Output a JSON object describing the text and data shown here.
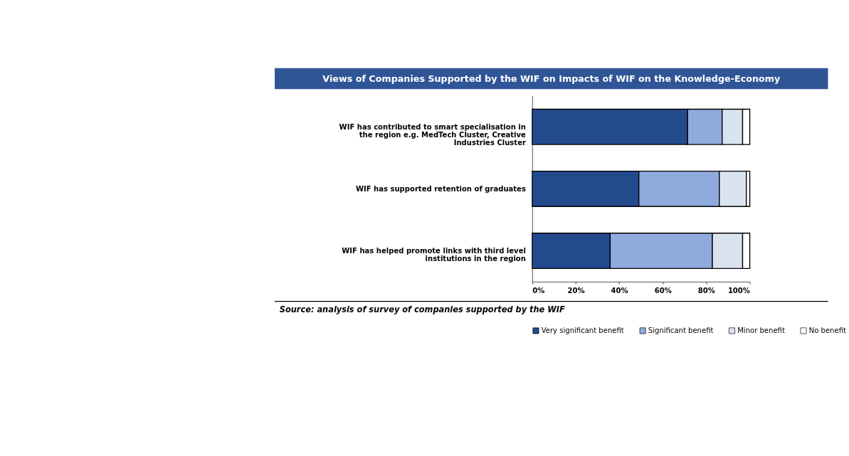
{
  "chart_data": {
    "type": "bar",
    "orientation": "horizontal",
    "stacked": true,
    "title": "Views of Companies Supported by the WIF on Impacts of WIF on the Knowledge-Economy",
    "categories": [
      "WIF has contributed to smart specialisation in the region e.g. MedTech Cluster, Creative Industries Cluster",
      "WIF has supported retention of graduates",
      "WIF has helped promote links with third level institutions in the region"
    ],
    "series": [
      {
        "name": "Very significant benefit",
        "color": "#244a8e",
        "values": [
          71.4,
          49.0,
          35.8
        ]
      },
      {
        "name": "Significant benefit",
        "color": "#8faadc",
        "values": [
          15.9,
          37.0,
          47.0
        ]
      },
      {
        "name": "Minor benefit",
        "color": "#dae3f0",
        "values": [
          9.4,
          12.4,
          13.9
        ]
      },
      {
        "name": "No benefit",
        "color": "#ffffff",
        "values": [
          3.3,
          1.6,
          3.3
        ]
      }
    ],
    "xlim": [
      0,
      100
    ],
    "xticks": [
      {
        "value": 0,
        "label": "0%"
      },
      {
        "value": 20,
        "label": "20%"
      },
      {
        "value": 40,
        "label": "40%"
      },
      {
        "value": 60,
        "label": "60%"
      },
      {
        "value": 80,
        "label": "80%"
      },
      {
        "value": 100,
        "label": "100%"
      }
    ],
    "legend": "bottom",
    "grid": false,
    "annotations": [
      "Source: analysis of survey of companies supported by the WIF"
    ]
  }
}
